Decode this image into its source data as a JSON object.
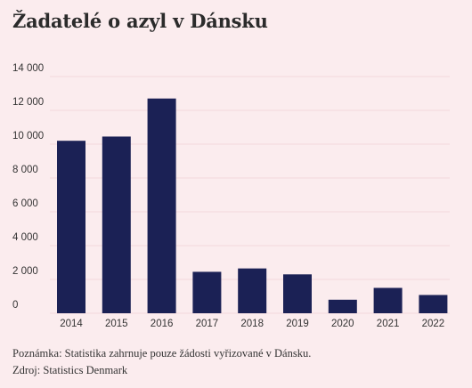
{
  "chart_data": {
    "type": "bar",
    "title": "Žadatelé o azyl v Dánsku",
    "categories": [
      "2014",
      "2015",
      "2016",
      "2017",
      "2018",
      "2019",
      "2020",
      "2021",
      "2022"
    ],
    "values": [
      10200,
      10450,
      12700,
      2450,
      2650,
      2300,
      800,
      1500,
      1080
    ],
    "ylim": [
      0,
      14000
    ],
    "yticks": [
      0,
      2000,
      4000,
      6000,
      8000,
      10000,
      12000,
      14000
    ],
    "ytick_labels": [
      "0",
      "2 000",
      "4 000",
      "6 000",
      "8 000",
      "10 000",
      "12 000",
      "14 000"
    ],
    "grid": true,
    "bar_color": "#1b2155",
    "grid_color": "#f3d7dc"
  },
  "footer": {
    "note": "Poznámka: Statistika zahrnuje pouze žádosti vyřizované v Dánsku.",
    "source": "Zdroj: Statistics Denmark"
  }
}
